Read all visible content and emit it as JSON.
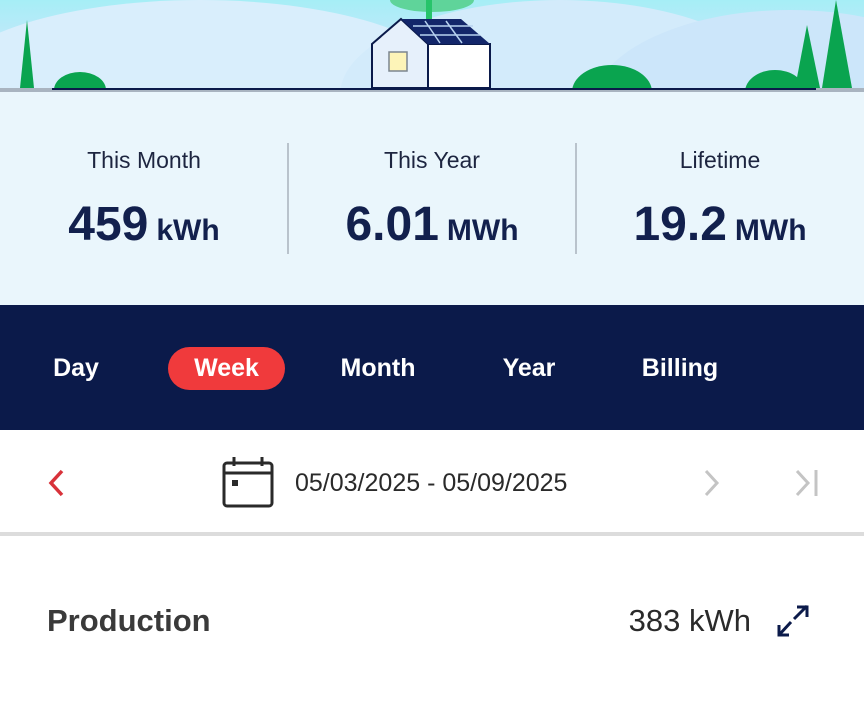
{
  "stats": [
    {
      "label": "This Month",
      "value": "459",
      "unit": "kWh"
    },
    {
      "label": "This Year",
      "value": "6.01",
      "unit": "MWh"
    },
    {
      "label": "Lifetime",
      "value": "19.2",
      "unit": "MWh"
    }
  ],
  "tabs": [
    {
      "label": "Day"
    },
    {
      "label": "Week",
      "active": true
    },
    {
      "label": "Month"
    },
    {
      "label": "Year"
    },
    {
      "label": "Billing"
    }
  ],
  "date_range": "05/03/2025 - 05/09/2025",
  "production": {
    "label": "Production",
    "value": "383 kWh"
  },
  "colors": {
    "accent": "#f03a3c",
    "navy": "#0b1a4a",
    "panel": "#eaf6fc",
    "tree": "#0aa44f"
  },
  "icons": [
    "chevron-left-icon",
    "calendar-icon",
    "chevron-right-icon",
    "skip-to-end-icon",
    "expand-icon"
  ]
}
